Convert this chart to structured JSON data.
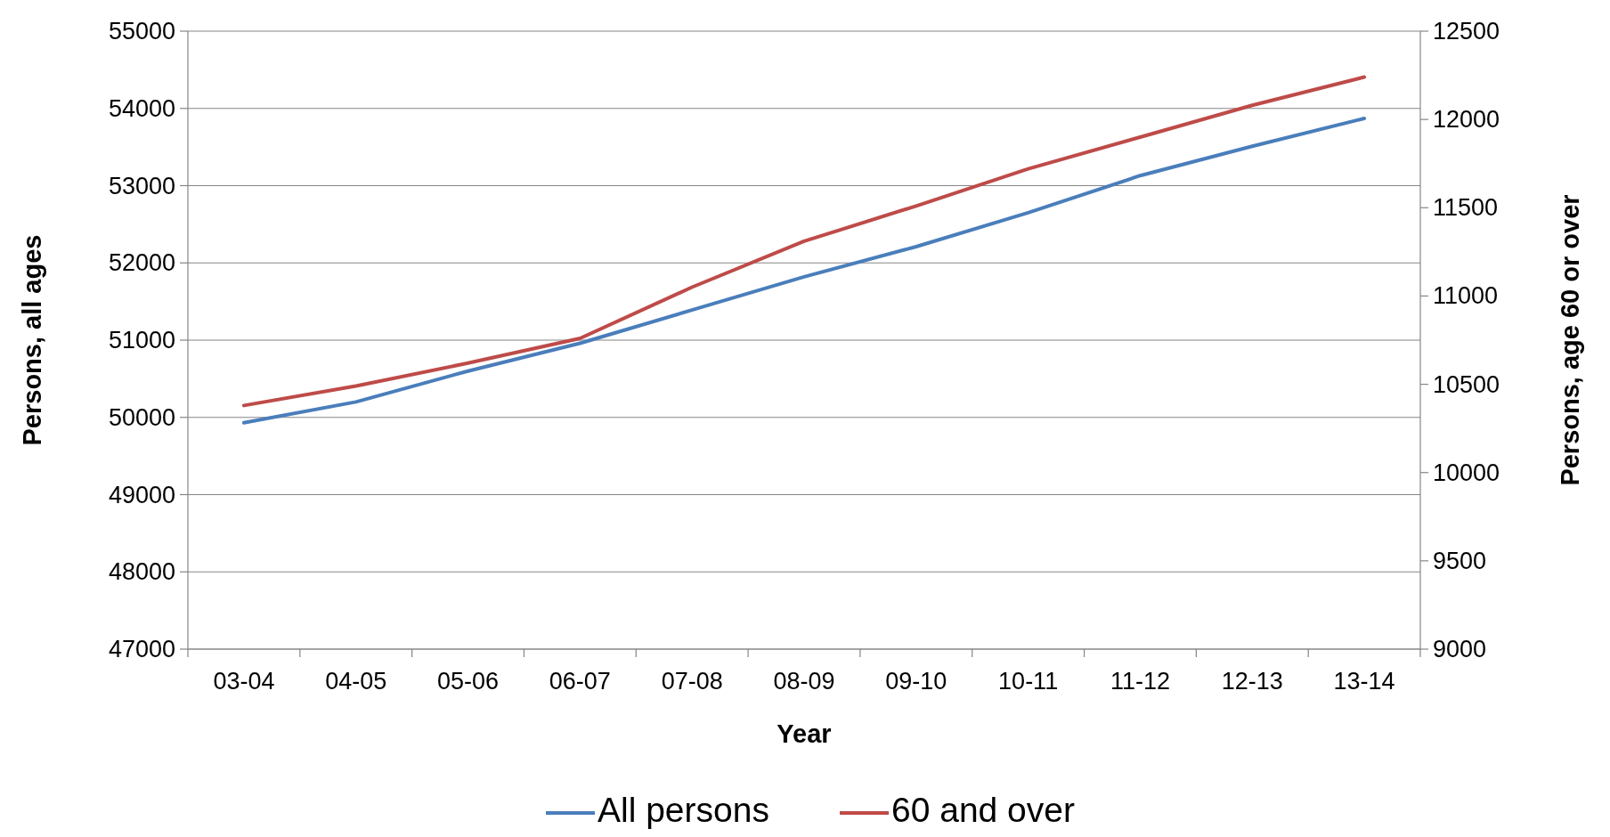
{
  "chart_data": {
    "type": "line",
    "xlabel": "Year",
    "ylabel": "Persons, all ages",
    "y2label": "Persons, age 60 or over",
    "categories": [
      "03-04",
      "04-05",
      "05-06",
      "06-07",
      "07-08",
      "08-09",
      "09-10",
      "10-11",
      "11-12",
      "12-13",
      "13-14"
    ],
    "series": [
      {
        "name": "All persons",
        "color": "#4a7ebb",
        "values": [
          49930,
          50200,
          50600,
          50960,
          51390,
          51820,
          52210,
          52650,
          53130,
          53510,
          53870
        ]
      },
      {
        "name": "60 and over",
        "color": "#be4b48",
        "axis": "y2",
        "values": [
          10380,
          10490,
          10620,
          10760,
          11050,
          11310,
          11510,
          11720,
          11900,
          12080,
          12240
        ]
      }
    ],
    "ylim": [
      47000,
      55000
    ],
    "yticks": [
      47000,
      48000,
      49000,
      50000,
      51000,
      52000,
      53000,
      54000,
      55000
    ],
    "y2lim": [
      9000,
      12500
    ],
    "y2ticks": [
      9000,
      9500,
      10000,
      10500,
      11000,
      11500,
      12000,
      12500
    ],
    "grid": "y",
    "legend": "bottom",
    "marker": "none",
    "line_style": "solid"
  }
}
